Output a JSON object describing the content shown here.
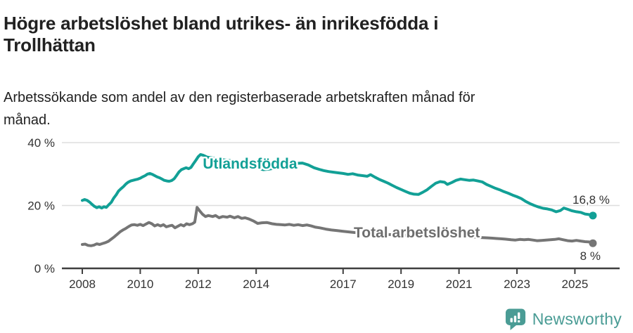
{
  "title": "Högre arbetslöshet bland utrikes- än inrikesfödda i Trollhättan",
  "subtitle": "Arbetssökande som andel av den registerbaserade arbetskraften månad för månad.",
  "footer": {
    "brand": "Newsworthy",
    "logo_icon": "bar-chart-speech-bubble-icon"
  },
  "colors": {
    "foreign_born_line": "#12a096",
    "total_line": "#757575",
    "total_label": "#6e6e6e",
    "axis_line": "#3f3f3f",
    "gridline": "#dddddd",
    "axis_text": "#333333",
    "end_label_text": "#333333",
    "brand_teal": "#4a9c95",
    "background": "#ffffff"
  },
  "chart_data": {
    "type": "line",
    "title": "Högre arbetslöshet bland utrikes- än inrikesfödda i Trollhättan",
    "subtitle": "Arbetssökande som andel av den registerbaserade arbetskraften månad för månad.",
    "xlabel": "",
    "ylabel": "",
    "grid": "horizontal",
    "legend_position": "inline-labels",
    "x_unit": "year (monthly data)",
    "y_unit": "%",
    "xlim": [
      2007.3,
      2026.5
    ],
    "ylim": [
      0,
      44
    ],
    "x_ticks": [
      2008,
      2010,
      2012,
      2014,
      2017,
      2019,
      2021,
      2023,
      2025
    ],
    "y_ticks": [
      {
        "value": 0,
        "label": "0 %"
      },
      {
        "value": 20,
        "label": "20 %"
      },
      {
        "value": 40,
        "label": "40 %"
      }
    ],
    "series": [
      {
        "name": "Utlandsfödda",
        "color": "#12a096",
        "label_color": "#12a096",
        "label_at": [
          2012.16,
          31.7
        ],
        "end_value": 16.8,
        "end_label": "16,8 %",
        "end_label_anchor": "end",
        "end_label_offset": [
          24,
          -17
        ],
        "points": [
          [
            2008.0,
            21.6
          ],
          [
            2008.08,
            21.9
          ],
          [
            2008.17,
            21.6
          ],
          [
            2008.25,
            21.1
          ],
          [
            2008.33,
            20.4
          ],
          [
            2008.42,
            19.7
          ],
          [
            2008.5,
            19.3
          ],
          [
            2008.58,
            19.6
          ],
          [
            2008.67,
            19.2
          ],
          [
            2008.75,
            19.6
          ],
          [
            2008.83,
            19.4
          ],
          [
            2008.92,
            20.3
          ],
          [
            2009.0,
            21.0
          ],
          [
            2009.08,
            22.3
          ],
          [
            2009.17,
            23.4
          ],
          [
            2009.25,
            24.6
          ],
          [
            2009.33,
            25.3
          ],
          [
            2009.42,
            26.0
          ],
          [
            2009.5,
            26.8
          ],
          [
            2009.58,
            27.4
          ],
          [
            2009.67,
            27.8
          ],
          [
            2009.75,
            28.0
          ],
          [
            2009.83,
            28.2
          ],
          [
            2009.92,
            28.4
          ],
          [
            2010.0,
            28.7
          ],
          [
            2010.08,
            29.1
          ],
          [
            2010.17,
            29.5
          ],
          [
            2010.25,
            30.0
          ],
          [
            2010.33,
            30.2
          ],
          [
            2010.42,
            29.9
          ],
          [
            2010.5,
            29.5
          ],
          [
            2010.58,
            29.1
          ],
          [
            2010.67,
            28.8
          ],
          [
            2010.75,
            28.4
          ],
          [
            2010.83,
            28.0
          ],
          [
            2010.92,
            27.8
          ],
          [
            2011.0,
            27.7
          ],
          [
            2011.08,
            27.9
          ],
          [
            2011.17,
            28.5
          ],
          [
            2011.25,
            29.5
          ],
          [
            2011.33,
            30.6
          ],
          [
            2011.42,
            31.4
          ],
          [
            2011.5,
            31.7
          ],
          [
            2011.58,
            32.0
          ],
          [
            2011.67,
            31.7
          ],
          [
            2011.75,
            32.1
          ],
          [
            2011.83,
            33.2
          ],
          [
            2011.92,
            34.4
          ],
          [
            2012.0,
            35.5
          ],
          [
            2012.08,
            36.2
          ],
          [
            2012.17,
            36.0
          ],
          [
            2012.3,
            35.4
          ],
          [
            2012.5,
            35.1
          ],
          [
            2012.7,
            34.8
          ],
          [
            2012.9,
            34.5
          ],
          [
            2013.1,
            34.3
          ],
          [
            2013.3,
            33.9
          ],
          [
            2013.5,
            33.5
          ],
          [
            2013.7,
            33.0
          ],
          [
            2013.9,
            32.3
          ],
          [
            2014.1,
            31.7
          ],
          [
            2014.25,
            31.4
          ],
          [
            2014.4,
            31.5
          ],
          [
            2014.6,
            31.8
          ],
          [
            2014.8,
            32.3
          ],
          [
            2015.0,
            32.8
          ],
          [
            2015.2,
            33.1
          ],
          [
            2015.4,
            33.4
          ],
          [
            2015.6,
            33.5
          ],
          [
            2015.8,
            32.9
          ],
          [
            2016.0,
            32.0
          ],
          [
            2016.17,
            31.5
          ],
          [
            2016.33,
            31.1
          ],
          [
            2016.5,
            30.8
          ],
          [
            2016.67,
            30.6
          ],
          [
            2016.83,
            30.4
          ],
          [
            2017.0,
            30.2
          ],
          [
            2017.17,
            29.9
          ],
          [
            2017.33,
            30.1
          ],
          [
            2017.5,
            29.7
          ],
          [
            2017.67,
            29.5
          ],
          [
            2017.83,
            29.3
          ],
          [
            2017.95,
            29.8
          ],
          [
            2018.1,
            29.0
          ],
          [
            2018.25,
            28.3
          ],
          [
            2018.4,
            27.7
          ],
          [
            2018.55,
            27.1
          ],
          [
            2018.7,
            26.4
          ],
          [
            2018.85,
            25.7
          ],
          [
            2019.0,
            25.1
          ],
          [
            2019.15,
            24.5
          ],
          [
            2019.3,
            23.9
          ],
          [
            2019.45,
            23.6
          ],
          [
            2019.6,
            23.5
          ],
          [
            2019.75,
            24.2
          ],
          [
            2019.9,
            25.0
          ],
          [
            2020.05,
            26.1
          ],
          [
            2020.2,
            27.1
          ],
          [
            2020.35,
            27.6
          ],
          [
            2020.5,
            27.4
          ],
          [
            2020.6,
            26.7
          ],
          [
            2020.75,
            27.3
          ],
          [
            2020.9,
            28.0
          ],
          [
            2021.05,
            28.4
          ],
          [
            2021.2,
            28.2
          ],
          [
            2021.35,
            28.0
          ],
          [
            2021.5,
            28.1
          ],
          [
            2021.65,
            27.8
          ],
          [
            2021.8,
            27.5
          ],
          [
            2021.95,
            26.7
          ],
          [
            2022.1,
            26.1
          ],
          [
            2022.25,
            25.5
          ],
          [
            2022.4,
            25.0
          ],
          [
            2022.55,
            24.4
          ],
          [
            2022.7,
            23.9
          ],
          [
            2022.85,
            23.3
          ],
          [
            2023.0,
            22.8
          ],
          [
            2023.15,
            22.2
          ],
          [
            2023.3,
            21.3
          ],
          [
            2023.45,
            20.6
          ],
          [
            2023.6,
            20.0
          ],
          [
            2023.75,
            19.5
          ],
          [
            2023.9,
            19.1
          ],
          [
            2024.05,
            18.9
          ],
          [
            2024.2,
            18.6
          ],
          [
            2024.35,
            18.0
          ],
          [
            2024.5,
            18.4
          ],
          [
            2024.62,
            19.2
          ],
          [
            2024.75,
            18.8
          ],
          [
            2024.9,
            18.3
          ],
          [
            2025.05,
            18.0
          ],
          [
            2025.2,
            17.8
          ],
          [
            2025.35,
            17.3
          ],
          [
            2025.5,
            17.1
          ],
          [
            2025.62,
            16.8
          ]
        ]
      },
      {
        "name": "Total arbetslöshet",
        "color": "#757575",
        "label_color": "#6e6e6e",
        "label_at": [
          2017.37,
          9.8
        ],
        "end_value": 8.0,
        "end_label": "8 %",
        "end_label_anchor": "end",
        "end_label_offset": [
          11,
          24
        ],
        "points": [
          [
            2008.0,
            7.6
          ],
          [
            2008.1,
            7.7
          ],
          [
            2008.2,
            7.3
          ],
          [
            2008.3,
            7.2
          ],
          [
            2008.4,
            7.4
          ],
          [
            2008.5,
            7.8
          ],
          [
            2008.6,
            7.6
          ],
          [
            2008.7,
            7.9
          ],
          [
            2008.8,
            8.2
          ],
          [
            2008.9,
            8.6
          ],
          [
            2009.0,
            9.3
          ],
          [
            2009.1,
            10.0
          ],
          [
            2009.2,
            10.8
          ],
          [
            2009.3,
            11.6
          ],
          [
            2009.4,
            12.2
          ],
          [
            2009.5,
            12.7
          ],
          [
            2009.6,
            13.3
          ],
          [
            2009.7,
            13.8
          ],
          [
            2009.8,
            13.9
          ],
          [
            2009.9,
            13.7
          ],
          [
            2010.0,
            14.0
          ],
          [
            2010.1,
            13.6
          ],
          [
            2010.2,
            14.1
          ],
          [
            2010.3,
            14.6
          ],
          [
            2010.4,
            14.2
          ],
          [
            2010.5,
            13.5
          ],
          [
            2010.6,
            13.9
          ],
          [
            2010.7,
            13.5
          ],
          [
            2010.8,
            13.9
          ],
          [
            2010.9,
            13.2
          ],
          [
            2011.0,
            13.5
          ],
          [
            2011.1,
            13.7
          ],
          [
            2011.2,
            12.9
          ],
          [
            2011.3,
            13.4
          ],
          [
            2011.4,
            13.9
          ],
          [
            2011.5,
            13.5
          ],
          [
            2011.6,
            14.2
          ],
          [
            2011.7,
            13.9
          ],
          [
            2011.8,
            14.2
          ],
          [
            2011.88,
            14.7
          ],
          [
            2011.96,
            19.4
          ],
          [
            2012.05,
            18.3
          ],
          [
            2012.15,
            17.2
          ],
          [
            2012.25,
            16.5
          ],
          [
            2012.35,
            16.8
          ],
          [
            2012.5,
            16.5
          ],
          [
            2012.6,
            16.8
          ],
          [
            2012.72,
            16.1
          ],
          [
            2012.85,
            16.5
          ],
          [
            2013.0,
            16.3
          ],
          [
            2013.1,
            16.6
          ],
          [
            2013.25,
            16.1
          ],
          [
            2013.37,
            16.5
          ],
          [
            2013.5,
            15.9
          ],
          [
            2013.62,
            16.1
          ],
          [
            2013.75,
            15.7
          ],
          [
            2013.9,
            15.1
          ],
          [
            2014.05,
            14.3
          ],
          [
            2014.2,
            14.5
          ],
          [
            2014.37,
            14.6
          ],
          [
            2014.55,
            14.2
          ],
          [
            2014.7,
            14.0
          ],
          [
            2014.85,
            13.9
          ],
          [
            2015.0,
            13.8
          ],
          [
            2015.15,
            14.0
          ],
          [
            2015.3,
            13.7
          ],
          [
            2015.45,
            13.9
          ],
          [
            2015.6,
            13.6
          ],
          [
            2015.75,
            13.8
          ],
          [
            2015.9,
            13.5
          ],
          [
            2016.05,
            13.1
          ],
          [
            2016.2,
            12.9
          ],
          [
            2016.4,
            12.5
          ],
          [
            2016.6,
            12.2
          ],
          [
            2016.8,
            12.0
          ],
          [
            2017.0,
            11.8
          ],
          [
            2017.2,
            11.6
          ],
          [
            2017.4,
            11.4
          ],
          [
            2017.6,
            11.3
          ],
          [
            2017.8,
            11.2
          ],
          [
            2017.95,
            10.8
          ],
          [
            2018.1,
            11.0
          ],
          [
            2018.3,
            10.9
          ],
          [
            2018.5,
            10.8
          ],
          [
            2018.75,
            10.7
          ],
          [
            2019.0,
            10.6
          ],
          [
            2019.25,
            10.5
          ],
          [
            2019.5,
            10.4
          ],
          [
            2019.75,
            10.4
          ],
          [
            2020.0,
            10.5
          ],
          [
            2020.25,
            10.6
          ],
          [
            2020.5,
            10.6
          ],
          [
            2020.75,
            10.5
          ],
          [
            2021.0,
            10.4
          ],
          [
            2021.25,
            10.2
          ],
          [
            2021.5,
            10.0
          ],
          [
            2021.75,
            9.8
          ],
          [
            2022.0,
            9.7
          ],
          [
            2022.15,
            9.6
          ],
          [
            2022.3,
            9.5
          ],
          [
            2022.45,
            9.4
          ],
          [
            2022.6,
            9.3
          ],
          [
            2022.8,
            9.1
          ],
          [
            2022.95,
            9.0
          ],
          [
            2023.1,
            9.2
          ],
          [
            2023.25,
            9.1
          ],
          [
            2023.4,
            9.2
          ],
          [
            2023.55,
            9.0
          ],
          [
            2023.7,
            8.8
          ],
          [
            2023.85,
            8.9
          ],
          [
            2024.0,
            9.0
          ],
          [
            2024.15,
            9.1
          ],
          [
            2024.3,
            9.2
          ],
          [
            2024.45,
            9.4
          ],
          [
            2024.6,
            9.1
          ],
          [
            2024.75,
            8.8
          ],
          [
            2024.9,
            8.7
          ],
          [
            2025.05,
            8.9
          ],
          [
            2025.2,
            8.7
          ],
          [
            2025.35,
            8.5
          ],
          [
            2025.5,
            8.4
          ],
          [
            2025.62,
            8.0
          ]
        ]
      }
    ]
  }
}
